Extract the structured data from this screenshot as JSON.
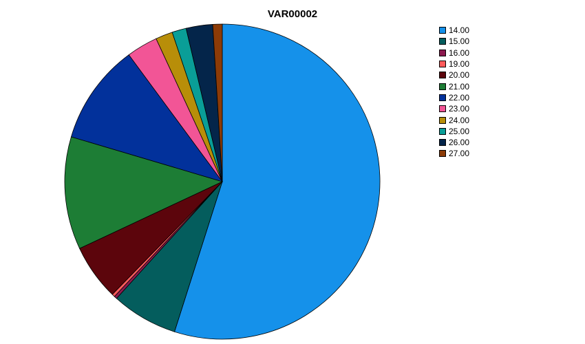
{
  "chart_data": {
    "type": "pie",
    "title": "VAR00002",
    "legend_position": "right",
    "slices": [
      {
        "label": "14.00",
        "value": 56.5,
        "color": "#1591ea"
      },
      {
        "label": "15.00",
        "value": 7.0,
        "color": "#045d5d"
      },
      {
        "label": "16.00",
        "value": 0.3,
        "color": "#8c1a4f"
      },
      {
        "label": "19.00",
        "value": 0.3,
        "color": "#ff5a5a"
      },
      {
        "label": "20.00",
        "value": 5.9,
        "color": "#5c050c"
      },
      {
        "label": "21.00",
        "value": 11.9,
        "color": "#1d7d35"
      },
      {
        "label": "22.00",
        "value": 10.6,
        "color": "#02319b"
      },
      {
        "label": "23.00",
        "value": 3.3,
        "color": "#f25596"
      },
      {
        "label": "24.00",
        "value": 1.8,
        "color": "#b88e09"
      },
      {
        "label": "25.00",
        "value": 1.5,
        "color": "#0a9e97"
      },
      {
        "label": "26.00",
        "value": 2.8,
        "color": "#04254a"
      },
      {
        "label": "27.00",
        "value": 1.0,
        "color": "#8c3b07"
      }
    ]
  }
}
